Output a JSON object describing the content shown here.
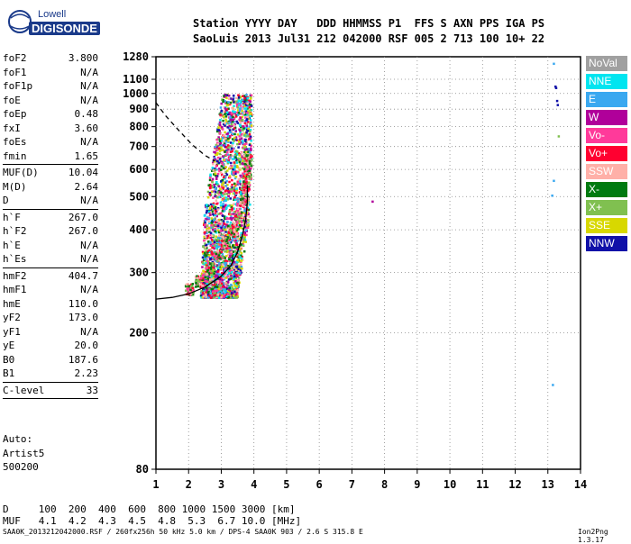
{
  "logo": {
    "top": "Lowell",
    "bottom": "DIGISONDE"
  },
  "header": {
    "row1": "Station YYYY DAY   DDD HHMMSS P1  FFS S AXN PPS IGA PS",
    "row2": "SaoLuis 2013 Jul31 212 042000 RSF 005 2 713 100 10+ 22"
  },
  "params": [
    {
      "name": "foF2",
      "value": "3.800"
    },
    {
      "name": "foF1",
      "value": "N/A"
    },
    {
      "name": "foF1p",
      "value": "N/A"
    },
    {
      "name": "foE",
      "value": "N/A"
    },
    {
      "name": "foEp",
      "value": "0.48"
    },
    {
      "name": "fxI",
      "value": "3.60"
    },
    {
      "name": "foEs",
      "value": "N/A"
    },
    {
      "name": "fmin",
      "value": "1.65"
    },
    {
      "sep": true
    },
    {
      "name": "MUF(D)",
      "value": "10.04"
    },
    {
      "name": "M(D)",
      "value": "2.64"
    },
    {
      "name": "D",
      "value": "N/A"
    },
    {
      "sep": true
    },
    {
      "name": "h`F",
      "value": "267.0"
    },
    {
      "name": "h`F2",
      "value": "267.0"
    },
    {
      "name": "h`E",
      "value": "N/A"
    },
    {
      "name": "h`Es",
      "value": "N/A"
    },
    {
      "sep": true
    },
    {
      "name": "hmF2",
      "value": "404.7"
    },
    {
      "name": "hmF1",
      "value": "N/A"
    },
    {
      "name": "hmE",
      "value": "110.0"
    },
    {
      "name": "yF2",
      "value": "173.0"
    },
    {
      "name": "yF1",
      "value": "N/A"
    },
    {
      "name": "yE",
      "value": "20.0"
    },
    {
      "name": "B0",
      "value": "187.6"
    },
    {
      "name": "B1",
      "value": "2.23"
    },
    {
      "sep": true
    },
    {
      "name": "C-level",
      "value": "33"
    },
    {
      "sep": true
    }
  ],
  "auto": {
    "line1": "Auto:",
    "line2": "Artist5",
    "line3": "500200"
  },
  "legend": [
    {
      "label": "NoVal",
      "color": "#a0a0a0"
    },
    {
      "label": "NNE",
      "color": "#00e5f0"
    },
    {
      "label": "E",
      "color": "#3aa8f0"
    },
    {
      "label": "W",
      "color": "#b0009a"
    },
    {
      "label": "Vo-",
      "color": "#ff3a9a"
    },
    {
      "label": "Vo+",
      "color": "#ff0030"
    },
    {
      "label": "SSW",
      "color": "#ffb0a8"
    },
    {
      "label": "X-",
      "color": "#007a10"
    },
    {
      "label": "X+",
      "color": "#80c050"
    },
    {
      "label": "SSE",
      "color": "#d8d800"
    },
    {
      "label": "NNW",
      "color": "#1010a8"
    }
  ],
  "footer": {
    "row1": "D     100  200  400  600  800 1000 1500 3000 [km]",
    "row2": "MUF   4.1  4.2  4.3  4.5  4.8  5.3  6.7 10.0 [MHz]",
    "source": "SAA0K_2013212042000.RSF / 260fx256h 50 kHz 5.0 km / DPS-4 SAA0K 903 / 2.6 S 315.8 E",
    "version": "Ion2Png 1.3.17"
  },
  "chart_data": {
    "type": "scatter",
    "xlim": [
      1,
      14
    ],
    "ylim": [
      80,
      1280
    ],
    "y_scale": "log",
    "x_ticks": [
      1,
      2,
      3,
      4,
      5,
      6,
      7,
      8,
      9,
      10,
      11,
      12,
      13,
      14
    ],
    "y_ticks": [
      80,
      200,
      300,
      400,
      500,
      600,
      700,
      800,
      900,
      1000,
      1100,
      1280
    ],
    "grid": "dotted",
    "ordinary_trace": [
      [
        2.0,
        270
      ],
      [
        2.3,
        285
      ],
      [
        2.6,
        310
      ],
      [
        2.9,
        340
      ],
      [
        3.1,
        370
      ],
      [
        3.3,
        400
      ],
      [
        3.5,
        440
      ],
      [
        3.65,
        490
      ],
      [
        3.72,
        540
      ],
      [
        3.76,
        590
      ],
      [
        3.78,
        640
      ]
    ],
    "profile_solid": [
      [
        1.0,
        251
      ],
      [
        1.5,
        254
      ],
      [
        2.0,
        260
      ],
      [
        2.5,
        272
      ],
      [
        3.0,
        293
      ],
      [
        3.3,
        315
      ],
      [
        3.5,
        345
      ],
      [
        3.65,
        385
      ],
      [
        3.75,
        430
      ],
      [
        3.8,
        480
      ],
      [
        3.8,
        540
      ]
    ],
    "profile_dashed": [
      [
        1.0,
        940
      ],
      [
        1.3,
        860
      ],
      [
        1.7,
        780
      ],
      [
        2.1,
        710
      ],
      [
        2.5,
        660
      ],
      [
        2.8,
        635
      ]
    ],
    "spread_region": {
      "f_min": 1.9,
      "f_max": 3.9,
      "h_min": 255,
      "h_max": 1000
    },
    "isolated_points": [
      {
        "f": 13.15,
        "h": 1230,
        "color": "#3aa8f0"
      },
      {
        "f": 13.2,
        "h": 1055,
        "color": "#1010a8"
      },
      {
        "f": 13.22,
        "h": 1045,
        "color": "#1010a8"
      },
      {
        "f": 13.25,
        "h": 958,
        "color": "#1010a8"
      },
      {
        "f": 13.27,
        "h": 932,
        "color": "#1010a8"
      },
      {
        "f": 13.3,
        "h": 755,
        "color": "#80c050"
      },
      {
        "f": 13.15,
        "h": 560,
        "color": "#3aa8f0"
      },
      {
        "f": 13.1,
        "h": 507,
        "color": "#3aa8f0"
      },
      {
        "f": 7.6,
        "h": 487,
        "color": "#b0009a"
      },
      {
        "f": 13.12,
        "h": 142,
        "color": "#3aa8f0"
      }
    ]
  }
}
